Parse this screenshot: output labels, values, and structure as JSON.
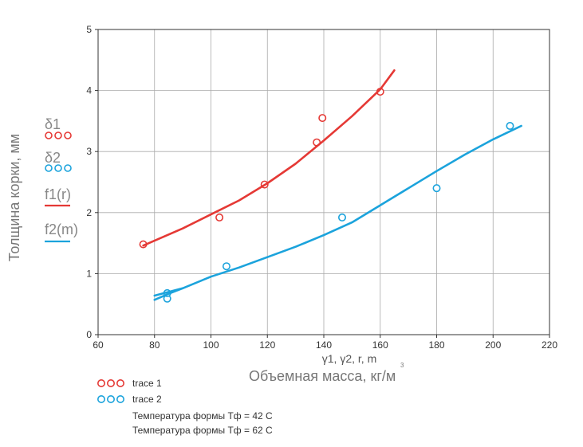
{
  "chart_data": {
    "type": "scatter",
    "title": "",
    "xlabel": "Объемная масса, кг/м",
    "xlabel_superscript": "3",
    "xlabel_secondary": "γ1, γ2, r, m",
    "ylabel": "Толщина корки, мм",
    "xlim": [
      60,
      220
    ],
    "ylim": [
      0,
      5
    ],
    "xticks": [
      60,
      80,
      100,
      120,
      140,
      160,
      180,
      200,
      220
    ],
    "yticks": [
      0,
      1,
      2,
      3,
      4,
      5
    ],
    "grid": true,
    "series": [
      {
        "name": "δ1",
        "kind": "points",
        "color": "#e53935",
        "points": [
          [
            76,
            1.48
          ],
          [
            103,
            1.92
          ],
          [
            119,
            2.46
          ],
          [
            137.5,
            3.15
          ],
          [
            139.5,
            3.55
          ],
          [
            160,
            3.98
          ]
        ]
      },
      {
        "name": "δ2",
        "kind": "points",
        "color": "#1ba3dc",
        "points": [
          [
            84.5,
            0.59
          ],
          [
            84.5,
            0.68
          ],
          [
            105.5,
            1.12
          ],
          [
            146.5,
            1.92
          ],
          [
            180,
            2.4
          ],
          [
            206,
            3.42
          ]
        ]
      },
      {
        "name": "f1(r)",
        "kind": "line",
        "color": "#e53935",
        "points": [
          [
            76,
            1.46
          ],
          [
            90,
            1.74
          ],
          [
            100,
            1.97
          ],
          [
            110,
            2.2
          ],
          [
            120,
            2.48
          ],
          [
            130,
            2.8
          ],
          [
            140,
            3.18
          ],
          [
            150,
            3.58
          ],
          [
            160,
            4.02
          ],
          [
            165,
            4.33
          ]
        ]
      },
      {
        "name": "f2(m)",
        "kind": "line",
        "color": "#1ba3dc",
        "points": [
          [
            80,
            0.64
          ],
          [
            90,
            0.76
          ],
          [
            100,
            0.95
          ],
          [
            110,
            1.1
          ],
          [
            120,
            1.27
          ],
          [
            130,
            1.44
          ],
          [
            140,
            1.63
          ],
          [
            150,
            1.84
          ],
          [
            160,
            2.12
          ],
          [
            170,
            2.4
          ],
          [
            180,
            2.68
          ],
          [
            190,
            2.95
          ],
          [
            200,
            3.2
          ],
          [
            210,
            3.42
          ]
        ]
      },
      {
        "name": "",
        "kind": "line",
        "color": "#1ba3dc",
        "points": [
          [
            80,
            0.57
          ],
          [
            85,
            0.67
          ],
          [
            90,
            0.76
          ]
        ]
      }
    ],
    "side_legend": [
      {
        "label": "δ1",
        "type": "markers",
        "color": "#e53935"
      },
      {
        "label": "δ2",
        "type": "markers",
        "color": "#1ba3dc"
      },
      {
        "label": "f1(r)",
        "type": "line",
        "color": "#e53935"
      },
      {
        "label": "f2(m)",
        "type": "line",
        "color": "#1ba3dc"
      }
    ],
    "bottom_legend": [
      {
        "label": "trace 1",
        "color": "#e53935"
      },
      {
        "label": "trace 2",
        "color": "#1ba3dc"
      }
    ],
    "notes": [
      "Температура формы Тф = 42 С",
      "Температура формы Тф = 62 С"
    ]
  }
}
